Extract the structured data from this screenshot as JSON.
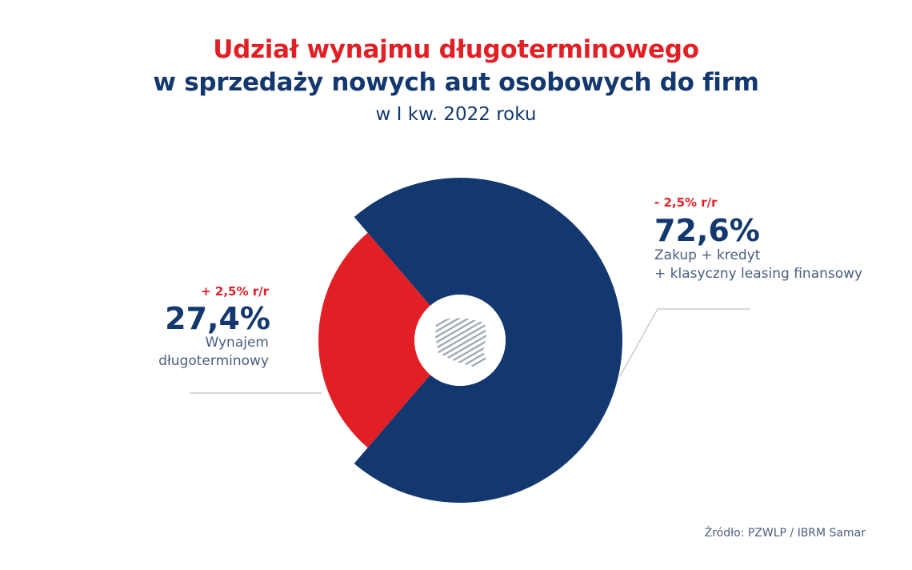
{
  "title": {
    "line1": "Udział wynajmu długoterminowego",
    "line2": "w sprzedaży nowych aut osobowych do firm",
    "subtitle": "w I kw. 2022 roku"
  },
  "chart_data": {
    "type": "pie",
    "variant": "donut",
    "title": "Udział wynajmu długoterminowego w sprzedaży nowych aut osobowych do firm",
    "subtitle": "w I kw. 2022 roku",
    "slices": [
      {
        "label": "Wynajem długoterminowy",
        "label_lines": [
          "Wynajem",
          "długoterminowy"
        ],
        "value": 27.4,
        "value_label": "27,4%",
        "change": "+ 2,5% r/r",
        "color": "#e31f26"
      },
      {
        "label": "Zakup + kredyt + klasyczny leasing finansowy",
        "label_lines": [
          "Zakup + kredyt",
          "+ klasyczny leasing finansowy"
        ],
        "value": 72.6,
        "value_label": "72,6%",
        "change": "- 2,5% r/r",
        "color": "#12386f"
      }
    ]
  },
  "source": "Źródło: PZWLP / IBRM Samar"
}
